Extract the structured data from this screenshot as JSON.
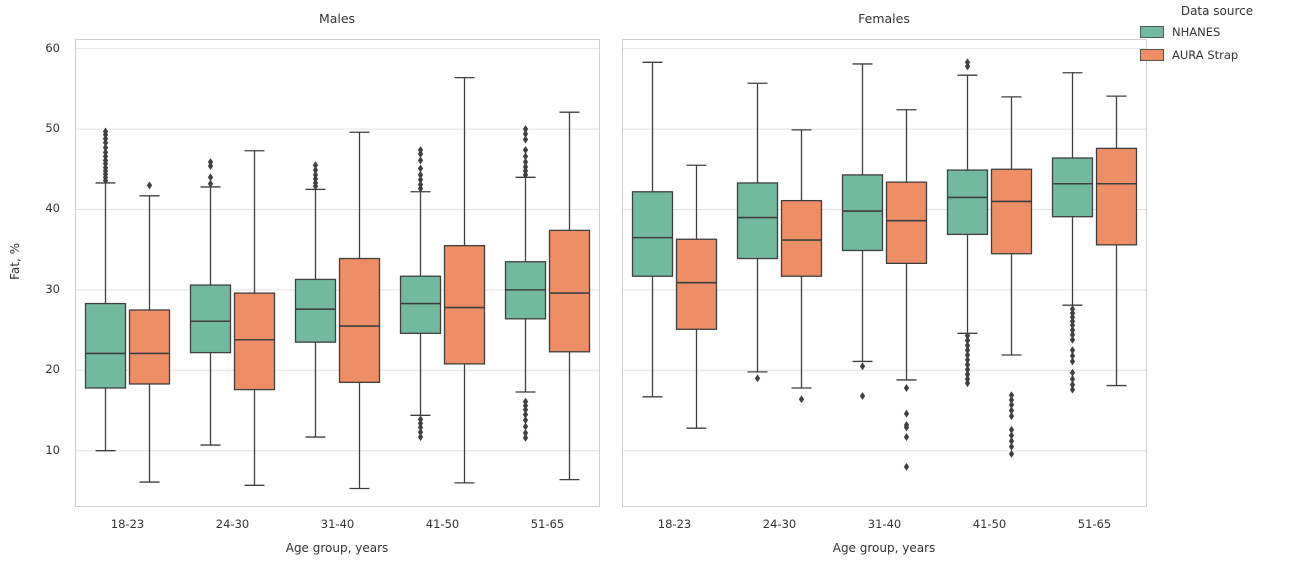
{
  "legend": {
    "title": "Data source",
    "items": [
      {
        "label": "NHANES",
        "color": "#72b9a0"
      },
      {
        "label": "AURA Strap",
        "color": "#ee8e67"
      }
    ]
  },
  "chart_data": {
    "type": "boxplot",
    "description": "Grouped boxplots of body fat percentage by age group and data source, faceted by sex",
    "categories": [
      "18-23",
      "24-30",
      "31-40",
      "41-50",
      "51-65"
    ],
    "xlabel": "Age group, years",
    "ylabel": "Fat, %",
    "yticks": [
      10,
      20,
      30,
      40,
      50,
      60
    ],
    "ylim": [
      3.0,
      61.2
    ],
    "grid": "horizontal",
    "legend_position": "upper right outside",
    "series_names": [
      "NHANES",
      "AURA Strap"
    ],
    "series_colors": {
      "NHANES": "#72b9a0",
      "AURA Strap": "#ee8e67"
    },
    "edge_color": "#3f3f3f",
    "facets": [
      {
        "title": "Males",
        "series": [
          {
            "name": "NHANES",
            "color": "#72b9a0",
            "boxes": [
              {
                "category": "18-23",
                "whislo": 10.0,
                "q1": 17.8,
                "med": 22.1,
                "q3": 28.3,
                "whishi": 43.3,
                "fliers": [
                  43.6,
                  44.0,
                  44.4,
                  44.8,
                  45.2,
                  45.7,
                  46.1,
                  46.6,
                  47.1,
                  47.7,
                  48.3,
                  48.8,
                  49.3,
                  49.7
                ]
              },
              {
                "category": "24-30",
                "whislo": 10.7,
                "q1": 22.2,
                "med": 26.1,
                "q3": 30.6,
                "whishi": 42.8,
                "fliers": [
                  43.2,
                  44.0,
                  45.4,
                  45.9
                ]
              },
              {
                "category": "31-40",
                "whislo": 11.7,
                "q1": 23.5,
                "med": 27.6,
                "q3": 31.3,
                "whishi": 42.5,
                "fliers": [
                  42.9,
                  43.3,
                  43.8,
                  44.3,
                  44.9,
                  45.5
                ]
              },
              {
                "category": "41-50",
                "whislo": 14.4,
                "q1": 24.6,
                "med": 28.3,
                "q3": 31.7,
                "whishi": 42.2,
                "fliers": [
                  42.6,
                  43.1,
                  43.7,
                  44.3,
                  45.1,
                  46.1,
                  46.9,
                  47.4,
                  13.9,
                  13.4,
                  12.9,
                  12.3,
                  11.7
                ]
              },
              {
                "category": "51-65",
                "whislo": 17.3,
                "q1": 26.4,
                "med": 30.0,
                "q3": 33.5,
                "whishi": 44.0,
                "fliers": [
                  44.3,
                  44.8,
                  45.3,
                  45.9,
                  46.6,
                  47.4,
                  48.7,
                  49.4,
                  50.0,
                  16.1,
                  15.6,
                  15.1,
                  14.5,
                  13.8,
                  13.0,
                  12.2,
                  11.6
                ]
              }
            ]
          },
          {
            "name": "AURA Strap",
            "color": "#ee8e67",
            "boxes": [
              {
                "category": "18-23",
                "whislo": 6.1,
                "q1": 18.3,
                "med": 22.1,
                "q3": 27.5,
                "whishi": 41.7,
                "fliers": [
                  43.0
                ]
              },
              {
                "category": "24-30",
                "whislo": 5.7,
                "q1": 17.6,
                "med": 23.8,
                "q3": 29.6,
                "whishi": 47.3,
                "fliers": []
              },
              {
                "category": "31-40",
                "whislo": 5.3,
                "q1": 18.5,
                "med": 25.5,
                "q3": 33.9,
                "whishi": 49.6,
                "fliers": []
              },
              {
                "category": "41-50",
                "whislo": 6.0,
                "q1": 20.8,
                "med": 27.8,
                "q3": 35.5,
                "whishi": 56.4,
                "fliers": []
              },
              {
                "category": "51-65",
                "whislo": 6.4,
                "q1": 22.3,
                "med": 29.6,
                "q3": 37.4,
                "whishi": 52.1,
                "fliers": []
              }
            ]
          }
        ]
      },
      {
        "title": "Females",
        "series": [
          {
            "name": "NHANES",
            "color": "#72b9a0",
            "boxes": [
              {
                "category": "18-23",
                "whislo": 16.7,
                "q1": 31.7,
                "med": 36.5,
                "q3": 42.2,
                "whishi": 58.3,
                "fliers": []
              },
              {
                "category": "24-30",
                "whislo": 19.8,
                "q1": 33.9,
                "med": 39.0,
                "q3": 43.3,
                "whishi": 55.7,
                "fliers": [
                  19.0
                ]
              },
              {
                "category": "31-40",
                "whislo": 21.1,
                "q1": 34.9,
                "med": 39.8,
                "q3": 44.3,
                "whishi": 58.1,
                "fliers": [
                  20.5,
                  16.8
                ]
              },
              {
                "category": "41-50",
                "whislo": 24.6,
                "q1": 36.9,
                "med": 41.5,
                "q3": 44.9,
                "whishi": 56.7,
                "fliers": [
                  57.8,
                  58.3,
                  24.3,
                  23.7,
                  23.1,
                  22.5,
                  21.9,
                  21.3,
                  20.7,
                  20.1,
                  19.5,
                  18.9,
                  18.4
                ]
              },
              {
                "category": "51-65",
                "whislo": 28.1,
                "q1": 39.1,
                "med": 43.2,
                "q3": 46.4,
                "whishi": 57.0,
                "fliers": [
                  27.6,
                  27.1,
                  26.6,
                  26.1,
                  25.6,
                  25.0,
                  24.4,
                  23.8,
                  22.5,
                  21.8,
                  21.1,
                  19.7,
                  18.9,
                  18.2,
                  17.6
                ]
              }
            ]
          },
          {
            "name": "AURA Strap",
            "color": "#ee8e67",
            "boxes": [
              {
                "category": "18-23",
                "whislo": 12.8,
                "q1": 25.1,
                "med": 30.9,
                "q3": 36.3,
                "whishi": 45.5,
                "fliers": []
              },
              {
                "category": "24-30",
                "whislo": 17.8,
                "q1": 31.7,
                "med": 36.2,
                "q3": 41.1,
                "whishi": 49.9,
                "fliers": [
                  16.4
                ]
              },
              {
                "category": "31-40",
                "whislo": 18.8,
                "q1": 33.3,
                "med": 38.6,
                "q3": 43.4,
                "whishi": 52.4,
                "fliers": [
                  17.8,
                  14.6,
                  13.2,
                  12.9,
                  11.7,
                  8.0
                ]
              },
              {
                "category": "41-50",
                "whislo": 21.9,
                "q1": 34.5,
                "med": 41.0,
                "q3": 45.0,
                "whishi": 54.0,
                "fliers": [
                  16.9,
                  16.3,
                  15.7,
                  15.0,
                  14.3,
                  12.6,
                  11.9,
                  11.2,
                  10.5,
                  9.6
                ]
              },
              {
                "category": "51-65",
                "whislo": 18.1,
                "q1": 35.6,
                "med": 43.2,
                "q3": 47.6,
                "whishi": 54.1,
                "fliers": []
              }
            ]
          }
        ]
      }
    ]
  }
}
